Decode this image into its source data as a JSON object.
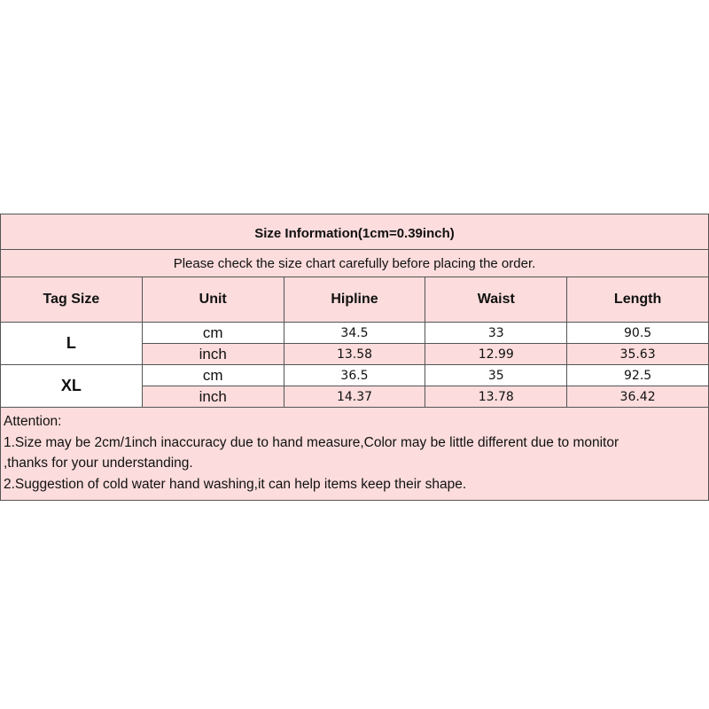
{
  "title": "Size Information(1cm=0.39inch)",
  "subtitle": "Please check the size chart carefully before placing the order.",
  "columns": [
    "Tag Size",
    "Unit",
    "Hipline",
    "Waist",
    "Length"
  ],
  "rows": [
    {
      "size": "L",
      "cm": {
        "unit": "cm",
        "hipline": "34.5",
        "waist": "33",
        "length": "90.5"
      },
      "inch": {
        "unit": "inch",
        "hipline": "13.58",
        "waist": "12.99",
        "length": "35.63"
      }
    },
    {
      "size": "XL",
      "cm": {
        "unit": "cm",
        "hipline": "36.5",
        "waist": "35",
        "length": "92.5"
      },
      "inch": {
        "unit": "inch",
        "hipline": "14.37",
        "waist": "13.78",
        "length": "36.42"
      }
    }
  ],
  "notes": [
    "Attention:",
    "1.Size may be 2cm/1inch inaccuracy due to hand measure,Color may be little different due to monitor",
    ",thanks for your understanding.",
    "2.Suggestion of cold water hand washing,it can help items keep their shape."
  ],
  "colors": {
    "pink": "#fcdcdc",
    "border": "#555555"
  }
}
